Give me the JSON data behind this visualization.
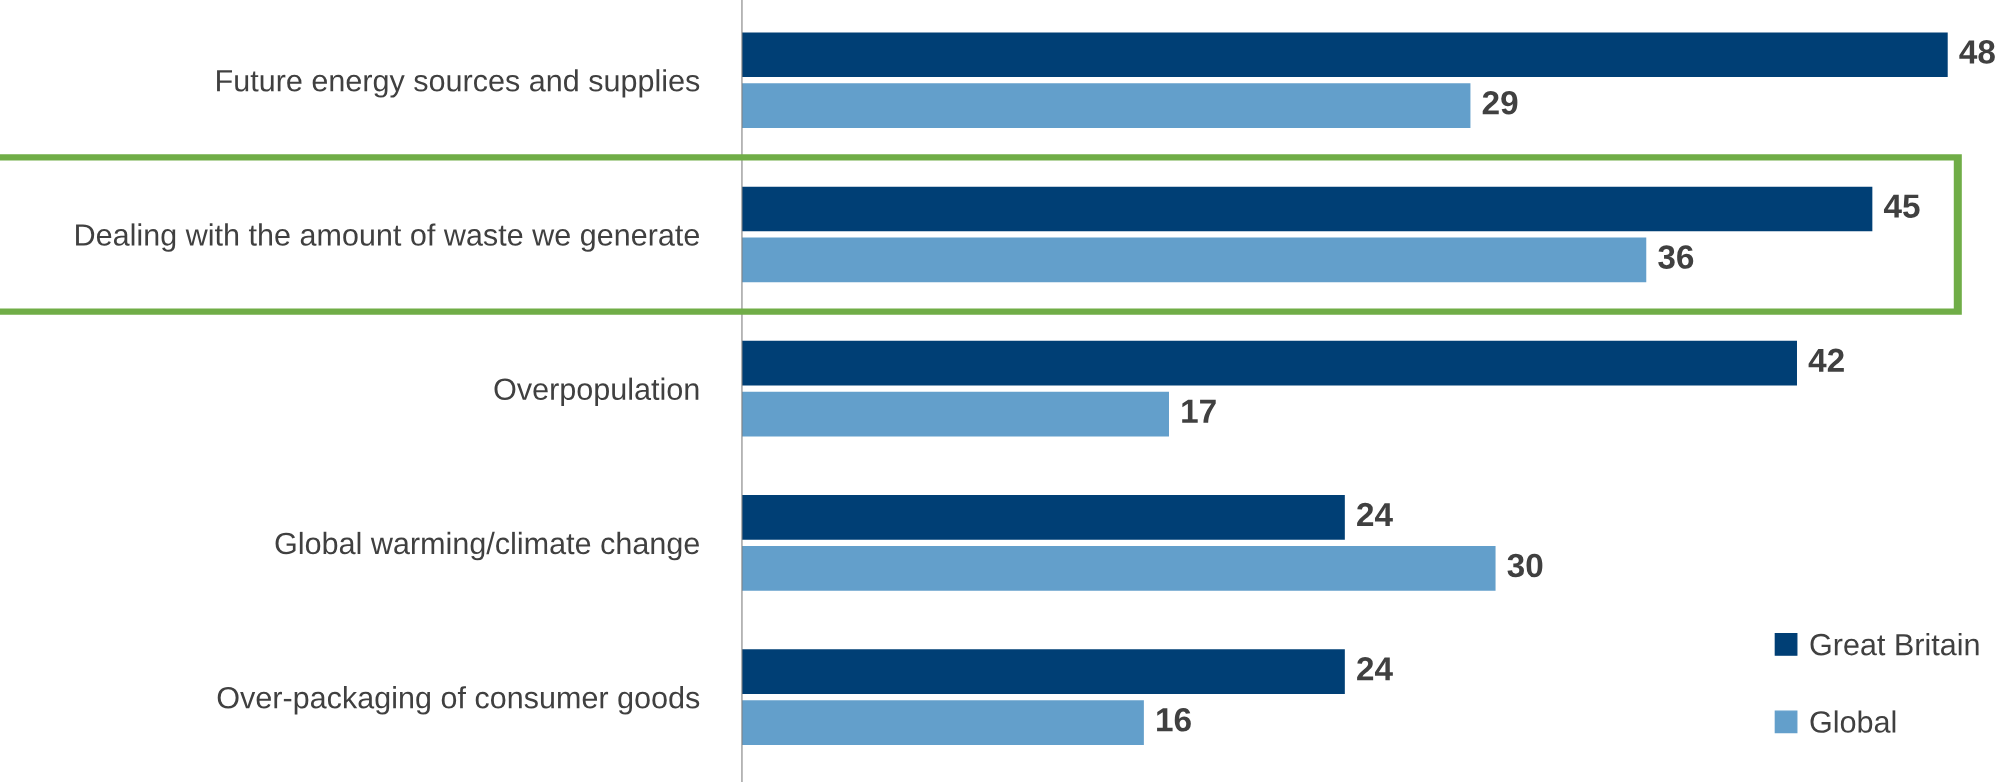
{
  "chart_data": {
    "type": "bar",
    "orientation": "horizontal",
    "categories": [
      "Future energy sources and supplies",
      "Dealing with the amount of waste we generate",
      "Overpopulation",
      "Global warming/climate change",
      "Over-packaging of consumer goods"
    ],
    "series": [
      {
        "name": "Great Britain",
        "color": "#003f75",
        "values": [
          48,
          45,
          42,
          24,
          24
        ]
      },
      {
        "name": "Global",
        "color": "#639fcb",
        "values": [
          29,
          36,
          17,
          30,
          16
        ]
      }
    ],
    "data_labels": true,
    "legend": "bottom right",
    "grid": false,
    "tick_labels": "y"
  }
}
